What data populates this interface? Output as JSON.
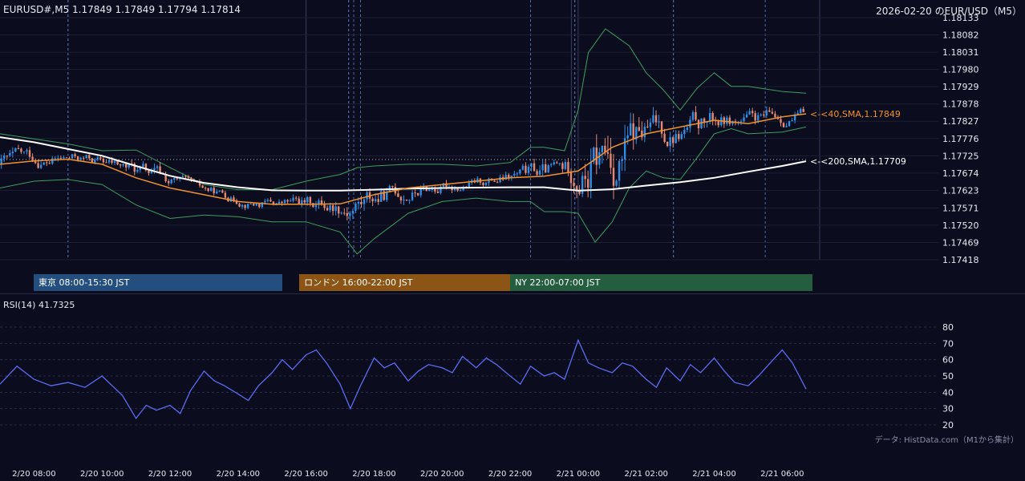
{
  "header": {
    "symbol_ohlc": "EURUSD#,M5 1.17849 1.17849 1.17794 1.17814",
    "date_title": "2026-02-20 のEUR/USD（M5）"
  },
  "colors": {
    "background": "#0b0c1e",
    "bull": "#2f8fe6",
    "bear": "#e58a72",
    "sma40": "#f0922e",
    "sma200": "#ffffff",
    "bollinger": "#3f9e5a",
    "rsi": "#5b6cf2"
  },
  "chart_data": [
    {
      "type": "line",
      "title": "EURUSD#,M5 1.17849 1.17849 1.17794 1.17814",
      "subtitle": "2026-02-20 のEUR/USD（M5）",
      "candle_chart": true,
      "x_unit": "hours from 2026-02-20 00:00 (JST)",
      "x_tick_labels": [
        "8",
        "10",
        "12",
        "14",
        "16",
        "18",
        "20",
        "22",
        "0",
        "2",
        "4",
        "6"
      ],
      "xlim": [
        7.0,
        30.7
      ],
      "y_tick_labels": [
        "1.18133",
        "1.18082",
        "1.18031",
        "1.17980",
        "1.17929",
        "1.17878",
        "1.17827",
        "1.17776",
        "1.17725",
        "1.17674",
        "1.17623",
        "1.17571",
        "1.17520",
        "1.17469",
        "1.17418"
      ],
      "ylim": [
        1.17418,
        1.18133
      ],
      "reference_line": 1.17714,
      "session_lines": [
        9.0,
        16.0,
        17.25,
        17.4,
        17.6,
        22.6,
        23.8,
        23.9,
        24.0,
        26.8,
        31.1
      ],
      "session_lines_dashed": [
        9.0,
        17.25,
        17.4,
        17.6,
        22.6,
        23.9,
        26.8,
        29.5
      ],
      "series": [
        {
          "name": "SMA(40)",
          "end_label": "<-<40,SMA,1.17849",
          "x": [
            7.0,
            8.0,
            9.0,
            10.0,
            11.0,
            12.0,
            13.0,
            14.0,
            15.0,
            16.0,
            17.0,
            18.0,
            19.0,
            20.0,
            21.0,
            22.0,
            23.0,
            24.0,
            25.0,
            26.0,
            27.0,
            28.0,
            29.0,
            30.0,
            30.7
          ],
          "y": [
            1.177,
            1.1771,
            1.17715,
            1.177,
            1.1766,
            1.1763,
            1.1761,
            1.1759,
            1.17582,
            1.17582,
            1.17583,
            1.1761,
            1.1763,
            1.1764,
            1.1765,
            1.1766,
            1.17665,
            1.1768,
            1.1775,
            1.1779,
            1.1781,
            1.1783,
            1.1782,
            1.1784,
            1.17849
          ]
        },
        {
          "name": "SMA(200)",
          "end_label": "<-<200,SMA,1.17709",
          "x": [
            7.0,
            8.0,
            9.0,
            10.0,
            11.0,
            12.0,
            13.0,
            14.0,
            15.0,
            16.0,
            17.0,
            18.0,
            19.0,
            20.0,
            21.0,
            22.0,
            23.0,
            24.0,
            25.0,
            26.0,
            27.0,
            28.0,
            29.0,
            30.0,
            30.7
          ],
          "y": [
            1.1778,
            1.17765,
            1.17745,
            1.17725,
            1.17695,
            1.17666,
            1.17645,
            1.17632,
            1.17623,
            1.17622,
            1.17622,
            1.17625,
            1.17628,
            1.1763,
            1.17631,
            1.17632,
            1.17632,
            1.17622,
            1.17626,
            1.17637,
            1.17647,
            1.1766,
            1.17678,
            1.17695,
            1.17709
          ]
        },
        {
          "name": "Bollinger upper",
          "x": [
            7.0,
            8.0,
            9.0,
            10.0,
            11.0,
            12.0,
            13.0,
            14.0,
            15.0,
            16.0,
            17.0,
            17.5,
            18.0,
            19.0,
            20.0,
            21.0,
            22.0,
            22.6,
            23.0,
            23.6,
            24.0,
            24.3,
            24.8,
            25.5,
            26.0,
            26.5,
            27.0,
            27.5,
            28.0,
            28.5,
            29.0,
            30.0,
            30.7
          ],
          "y": [
            1.1779,
            1.17775,
            1.1776,
            1.1774,
            1.17742,
            1.1769,
            1.1764,
            1.17625,
            1.17625,
            1.1765,
            1.1767,
            1.1769,
            1.17695,
            1.177,
            1.177,
            1.17695,
            1.17705,
            1.1775,
            1.1775,
            1.1774,
            1.1786,
            1.1803,
            1.181,
            1.1805,
            1.1797,
            1.1792,
            1.1786,
            1.17925,
            1.1797,
            1.1793,
            1.1793,
            1.17915,
            1.1791
          ]
        },
        {
          "name": "Bollinger lower",
          "x": [
            7.0,
            8.0,
            9.0,
            10.0,
            11.0,
            12.0,
            13.0,
            14.0,
            15.0,
            16.0,
            17.0,
            17.5,
            18.0,
            19.0,
            20.0,
            21.0,
            22.0,
            22.6,
            23.0,
            23.6,
            24.0,
            24.5,
            25.0,
            25.5,
            26.0,
            26.5,
            27.0,
            27.5,
            28.0,
            28.5,
            29.0,
            30.0,
            30.7
          ],
          "y": [
            1.1763,
            1.1765,
            1.17655,
            1.1764,
            1.1758,
            1.1754,
            1.1755,
            1.17545,
            1.1753,
            1.1753,
            1.175,
            1.17435,
            1.1748,
            1.17555,
            1.1759,
            1.176,
            1.1759,
            1.1759,
            1.1756,
            1.1756,
            1.17555,
            1.1747,
            1.1753,
            1.1763,
            1.1768,
            1.1766,
            1.17655,
            1.1772,
            1.1779,
            1.17805,
            1.1779,
            1.17795,
            1.1781
          ]
        }
      ]
    },
    {
      "type": "line",
      "title": "RSI(14) 41.7325",
      "x_unit": "hours from 2026-02-20 00:00 (JST)",
      "xlim": [
        7.0,
        30.7
      ],
      "ylim": [
        20,
        80
      ],
      "y_tick_labels": [
        "80",
        "70",
        "60",
        "50",
        "40",
        "30",
        "20"
      ],
      "grid": true,
      "x_tick_labels": [
        "2/20 08:00",
        "2/20 10:00",
        "2/20 12:00",
        "2/20 14:00",
        "2/20 16:00",
        "2/20 18:00",
        "2/20 20:00",
        "2/20 22:00",
        "2/21 00:00",
        "2/21 02:00",
        "2/21 04:00",
        "2/21 06:00"
      ],
      "series": [
        {
          "name": "RSI(14)",
          "x": [
            7.0,
            7.5,
            8.0,
            8.5,
            9.0,
            9.5,
            10.0,
            10.3,
            10.6,
            11.0,
            11.3,
            11.6,
            12.0,
            12.3,
            12.6,
            13.0,
            13.3,
            13.6,
            14.0,
            14.3,
            14.6,
            15.0,
            15.3,
            15.6,
            16.0,
            16.3,
            16.6,
            17.0,
            17.3,
            17.6,
            18.0,
            18.3,
            18.6,
            19.0,
            19.3,
            19.6,
            20.0,
            20.3,
            20.6,
            21.0,
            21.3,
            21.6,
            22.0,
            22.3,
            22.6,
            23.0,
            23.3,
            23.6,
            24.0,
            24.3,
            24.6,
            25.0,
            25.3,
            25.6,
            26.0,
            26.3,
            26.6,
            27.0,
            27.3,
            27.6,
            28.0,
            28.3,
            28.6,
            29.0,
            29.3,
            29.6,
            30.0,
            30.3,
            30.7
          ],
          "y": [
            45,
            56,
            48,
            44,
            46,
            43,
            50,
            44,
            38,
            24,
            32,
            29,
            32,
            27,
            41,
            53,
            47,
            44,
            39,
            35,
            44,
            52,
            60,
            54,
            63,
            66,
            58,
            45,
            30,
            44,
            61,
            55,
            58,
            47,
            53,
            57,
            55,
            52,
            62,
            55,
            61,
            57,
            50,
            45,
            56,
            50,
            52,
            48,
            72,
            58,
            55,
            52,
            58,
            56,
            48,
            43,
            55,
            47,
            57,
            52,
            61,
            53,
            46,
            44,
            50,
            57,
            66,
            58,
            42
          ]
        }
      ]
    }
  ],
  "sessions": [
    {
      "label": "東京 08:00-15:30 JST",
      "start": 7.0,
      "end": 15.3,
      "color": "#244e7e"
    },
    {
      "label": "ロンドン 16:00-22:00 JST",
      "start": 15.8,
      "end": 22.0,
      "color": "#8c5515"
    },
    {
      "label": "NY 22:00-07:00 JST",
      "start": 22.0,
      "end": 30.9,
      "color": "#255e3f"
    }
  ],
  "rsi_header": "RSI(14) 41.7325",
  "attribution": "データ: HistData.com（M1から集計）"
}
